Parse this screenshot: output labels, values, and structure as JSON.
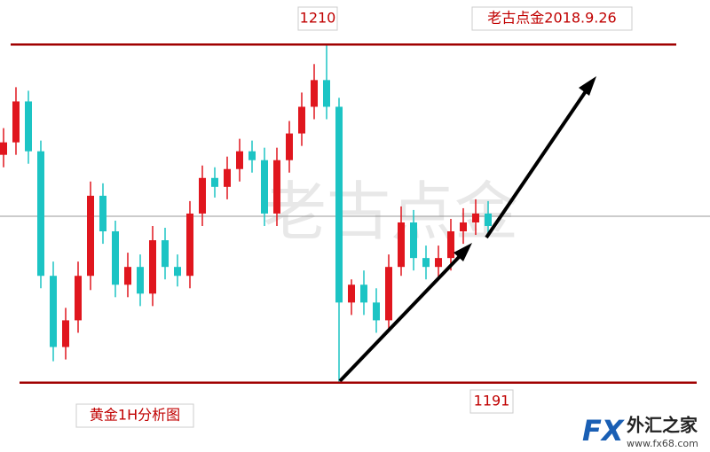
{
  "chart_data": {
    "type": "candlestick",
    "title": "老古点金2018.9.26",
    "subtitle": "黄金1H分析图",
    "watermark": "老古点金",
    "logo": {
      "brand": "FX",
      "name": "外汇之家",
      "url": "www.fx68.com"
    },
    "up_color": "#e0161e",
    "down_color": "#1cc4c4",
    "ylim": [
      1187.1,
      1212.5
    ],
    "levels": [
      1210,
      1191
    ],
    "open": [
      1203.8,
      1204.5,
      1206.8,
      1204,
      1197,
      1193,
      1194.5,
      1197,
      1201.5,
      1199.5,
      1196.5,
      1197.5,
      1196,
      1199,
      1197.5,
      1197,
      1200.5,
      1202.5,
      1202,
      1203,
      1204,
      1203.5,
      1200.5,
      1203.5,
      1205,
      1206.5,
      1208,
      1206.5,
      1195.5,
      1196.5,
      1195.5,
      1194.5,
      1197.5,
      1200,
      1198,
      1197.5,
      1198,
      1199.5,
      1200,
      1200.5
    ],
    "high": [
      1205.3,
      1207.6,
      1207.4,
      1204.6,
      1197.8,
      1195.2,
      1197.8,
      1202.3,
      1202.2,
      1200.1,
      1198.3,
      1198.2,
      1199.8,
      1199.7,
      1198.2,
      1201.2,
      1203.2,
      1203.1,
      1203.7,
      1204.7,
      1204.6,
      1204.2,
      1204.2,
      1205.7,
      1207.3,
      1208.9,
      1210,
      1207,
      1196.8,
      1197.3,
      1196.3,
      1198.2,
      1200.9,
      1200.7,
      1198.7,
      1198.7,
      1200.2,
      1200.8,
      1201.3,
      1201.2
    ],
    "low": [
      1203.1,
      1203.8,
      1203.3,
      1196.3,
      1192.2,
      1192.3,
      1193.8,
      1196.2,
      1198.8,
      1195.8,
      1195.8,
      1195.3,
      1195.3,
      1196.8,
      1196.4,
      1196.3,
      1199.8,
      1201.4,
      1201.3,
      1202.3,
      1202.8,
      1199.8,
      1199.8,
      1202.8,
      1204.3,
      1205.8,
      1205.8,
      1191,
      1194.8,
      1194.8,
      1193.8,
      1194,
      1197,
      1197.3,
      1196.8,
      1196.8,
      1197.3,
      1198.8,
      1199.3,
      1199.2
    ],
    "close": [
      1204.5,
      1206.8,
      1204,
      1197,
      1193,
      1194.5,
      1197,
      1201.5,
      1199.5,
      1196.5,
      1197.5,
      1196,
      1199,
      1197.5,
      1197,
      1200.5,
      1202.5,
      1202,
      1203,
      1204,
      1203.5,
      1200.5,
      1203.5,
      1205,
      1206.5,
      1208,
      1206.5,
      1195.5,
      1196.5,
      1195.5,
      1194.5,
      1197.5,
      1200,
      1198,
      1197.5,
      1198,
      1199.5,
      1200,
      1200.5,
      1199.8
    ]
  }
}
